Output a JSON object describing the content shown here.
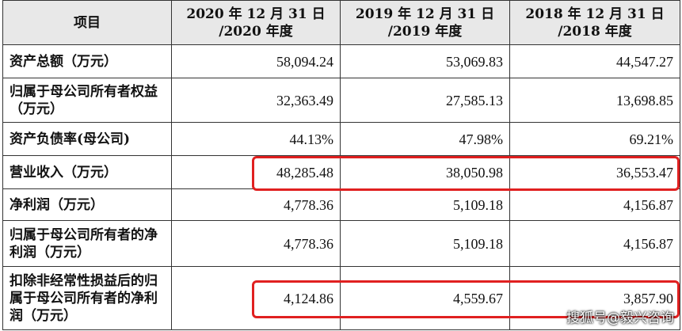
{
  "table": {
    "headers": [
      "项目",
      "2020 年 12 月 31 日\n/2020 年度",
      "2019 年 12 月 31 日\n/2019 年度",
      "2018 年 12 月 31 日\n/2018 年度"
    ],
    "rows": [
      {
        "label": "资产总额（万元）",
        "values": [
          "58,094.24",
          "53,069.83",
          "44,547.27"
        ]
      },
      {
        "label": "归属于母公司所有者权益（万元）",
        "values": [
          "32,363.49",
          "27,585.13",
          "13,698.85"
        ]
      },
      {
        "label": "资产负债率(母公司)",
        "values": [
          "44.13%",
          "47.98%",
          "69.21%"
        ]
      },
      {
        "label": "营业收入（万元）",
        "values": [
          "48,285.48",
          "38,050.98",
          "36,553.47"
        ],
        "highlighted": true
      },
      {
        "label": "净利润（万元）",
        "values": [
          "4,778.36",
          "5,109.18",
          "4,156.87"
        ]
      },
      {
        "label": "归属于母公司所有者的净利润（万元）",
        "values": [
          "4,778.36",
          "5,109.18",
          "4,156.87"
        ]
      },
      {
        "label": "扣除非经常性损益后的归属于母公司所有者的净利润（万元）",
        "values": [
          "4,124.86",
          "4,559.67",
          "3,857.90"
        ],
        "highlighted": true
      }
    ]
  },
  "highlight_color": "#e02020",
  "header_bg": "#e8e8e8",
  "watermark": "搜狐号@毅兴咨询"
}
